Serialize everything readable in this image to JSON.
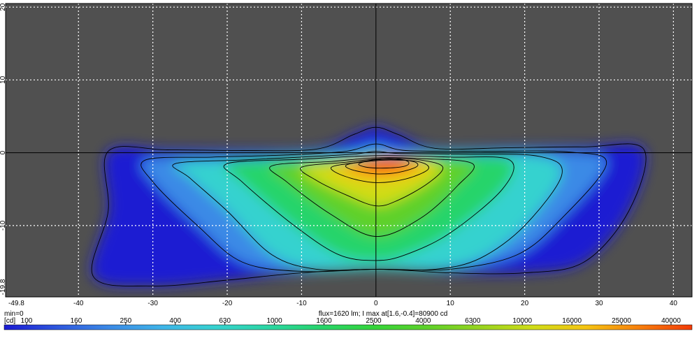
{
  "chart_data": {
    "type": "heatmap",
    "title": "",
    "xlabel": "",
    "ylabel": "",
    "xlim": [
      -49.8,
      42.5
    ],
    "ylim": [
      -19.8,
      20.5
    ],
    "x_ticks": [
      -40,
      -30,
      -20,
      -10,
      0,
      10,
      20,
      30,
      40
    ],
    "y_ticks": [
      20,
      10,
      0,
      -10
    ],
    "x_min_label": "-49.8",
    "y_min_label": "-19.8",
    "grid": true,
    "background_color": "#505050",
    "axis_color": "#000000",
    "min_label": "min=0",
    "unit_label": "[cd]",
    "info_text": "flux=1620 lm; I max at[1.6,-0.4]=80900 cd",
    "peak": {
      "x": 1.6,
      "y": -0.4,
      "value": 80900
    },
    "colorbar": {
      "values": [
        100,
        160,
        250,
        400,
        630,
        1000,
        1600,
        2500,
        4000,
        6300,
        10000,
        16000,
        25000,
        40000
      ],
      "labels": [
        "100",
        "160",
        "250",
        "400",
        "630",
        "1000",
        "1600",
        "2500",
        "4000",
        "6300",
        "10000",
        "16000",
        "25000",
        "40000"
      ],
      "colors": [
        "#1a1ad2",
        "#2e57dd",
        "#3b8ae6",
        "#3fb5e8",
        "#36d2cf",
        "#2bd6a3",
        "#27d46a",
        "#35d43a",
        "#5ed12a",
        "#98d41f",
        "#d0dc18",
        "#f5c412",
        "#f77f0c",
        "#f23b08"
      ]
    },
    "contour_levels": [
      100,
      250,
      630,
      1600,
      4000,
      10000,
      16000,
      25000,
      40000
    ],
    "series": [
      {
        "points": [
          [
            -36,
            0.2
          ],
          [
            -28,
            0.4
          ],
          [
            -18,
            0.3
          ],
          [
            -8,
            0.5
          ],
          [
            -3,
            2.5
          ],
          [
            0,
            3.5
          ],
          [
            3,
            2.5
          ],
          [
            8,
            0.6
          ],
          [
            18,
            0.7
          ],
          [
            28,
            0.8
          ],
          [
            36,
            0.5
          ],
          [
            34,
            -8
          ],
          [
            28,
            -15
          ],
          [
            20,
            -16.5
          ],
          [
            10,
            -16.5
          ],
          [
            0,
            -16
          ],
          [
            -10,
            -16.5
          ],
          [
            -20,
            -17.5
          ],
          [
            -30,
            -18.3
          ],
          [
            -38,
            -17
          ],
          [
            -36,
            -8
          ]
        ]
      },
      {
        "points": [
          [
            -31,
            -1
          ],
          [
            -22,
            -0.6
          ],
          [
            -12,
            -0.3
          ],
          [
            -4,
            0.2
          ],
          [
            0,
            1.2
          ],
          [
            4,
            0.3
          ],
          [
            14,
            0.2
          ],
          [
            26,
            0.1
          ],
          [
            31,
            -1.5
          ],
          [
            25,
            -9
          ],
          [
            19,
            -14
          ],
          [
            10,
            -16
          ],
          [
            0,
            -16
          ],
          [
            -10,
            -16.3
          ],
          [
            -18,
            -15
          ],
          [
            -24,
            -10
          ],
          [
            -30,
            -4
          ]
        ]
      },
      {
        "points": [
          [
            -27,
            -1.5
          ],
          [
            -18,
            -1.0
          ],
          [
            -10,
            -0.6
          ],
          [
            -3,
            -0.2
          ],
          [
            0,
            0.2
          ],
          [
            3,
            -0.1
          ],
          [
            12,
            -0.2
          ],
          [
            22,
            -0.5
          ],
          [
            25,
            -3
          ],
          [
            20,
            -10
          ],
          [
            14,
            -14.5
          ],
          [
            8,
            -16
          ],
          [
            0,
            -16
          ],
          [
            -8,
            -16
          ],
          [
            -14,
            -14
          ],
          [
            -20,
            -8
          ],
          [
            -25,
            -3.5
          ]
        ]
      },
      {
        "points": [
          [
            -20,
            -1.5
          ],
          [
            -10,
            -0.9
          ],
          [
            0,
            -0.4
          ],
          [
            10,
            -0.6
          ],
          [
            18,
            -1.0
          ],
          [
            17,
            -5
          ],
          [
            10,
            -11
          ],
          [
            4,
            -14
          ],
          [
            0,
            -14.8
          ],
          [
            -5,
            -14
          ],
          [
            -11,
            -10
          ],
          [
            -18,
            -4
          ]
        ]
      },
      {
        "points": [
          [
            -14,
            -1.8
          ],
          [
            -6,
            -1.2
          ],
          [
            0,
            -0.7
          ],
          [
            6,
            -0.8
          ],
          [
            13,
            -1.5
          ],
          [
            11,
            -4.5
          ],
          [
            6,
            -9
          ],
          [
            0,
            -11.5
          ],
          [
            -6,
            -8.5
          ],
          [
            -12,
            -4
          ]
        ]
      },
      {
        "points": [
          [
            -10,
            -2.0
          ],
          [
            -4,
            -1.3
          ],
          [
            1,
            -0.8
          ],
          [
            6,
            -1.0
          ],
          [
            9,
            -2.0
          ],
          [
            7,
            -4.2
          ],
          [
            3,
            -6.5
          ],
          [
            0,
            -7.3
          ],
          [
            -4,
            -5.8
          ],
          [
            -8,
            -3.8
          ]
        ]
      },
      {
        "points": [
          [
            -6,
            -2.0
          ],
          [
            -2,
            -1.3
          ],
          [
            2,
            -1.0
          ],
          [
            6,
            -1.3
          ],
          [
            7,
            -2.3
          ],
          [
            4,
            -3.6
          ],
          [
            0,
            -4.1
          ],
          [
            -4,
            -3.3
          ]
        ]
      },
      {
        "points": [
          [
            -4,
            -1.7
          ],
          [
            -1,
            -1.1
          ],
          [
            2,
            -0.9
          ],
          [
            5,
            -1.2
          ],
          [
            5.5,
            -1.9
          ],
          [
            3,
            -2.7
          ],
          [
            0,
            -2.9
          ],
          [
            -3,
            -2.4
          ]
        ]
      },
      {
        "points": [
          [
            -2.3,
            -1.5
          ],
          [
            0,
            -0.9
          ],
          [
            2.5,
            -0.8
          ],
          [
            4.3,
            -1.2
          ],
          [
            4,
            -1.8
          ],
          [
            1.5,
            -2.1
          ],
          [
            -1.2,
            -2.0
          ]
        ]
      }
    ]
  }
}
